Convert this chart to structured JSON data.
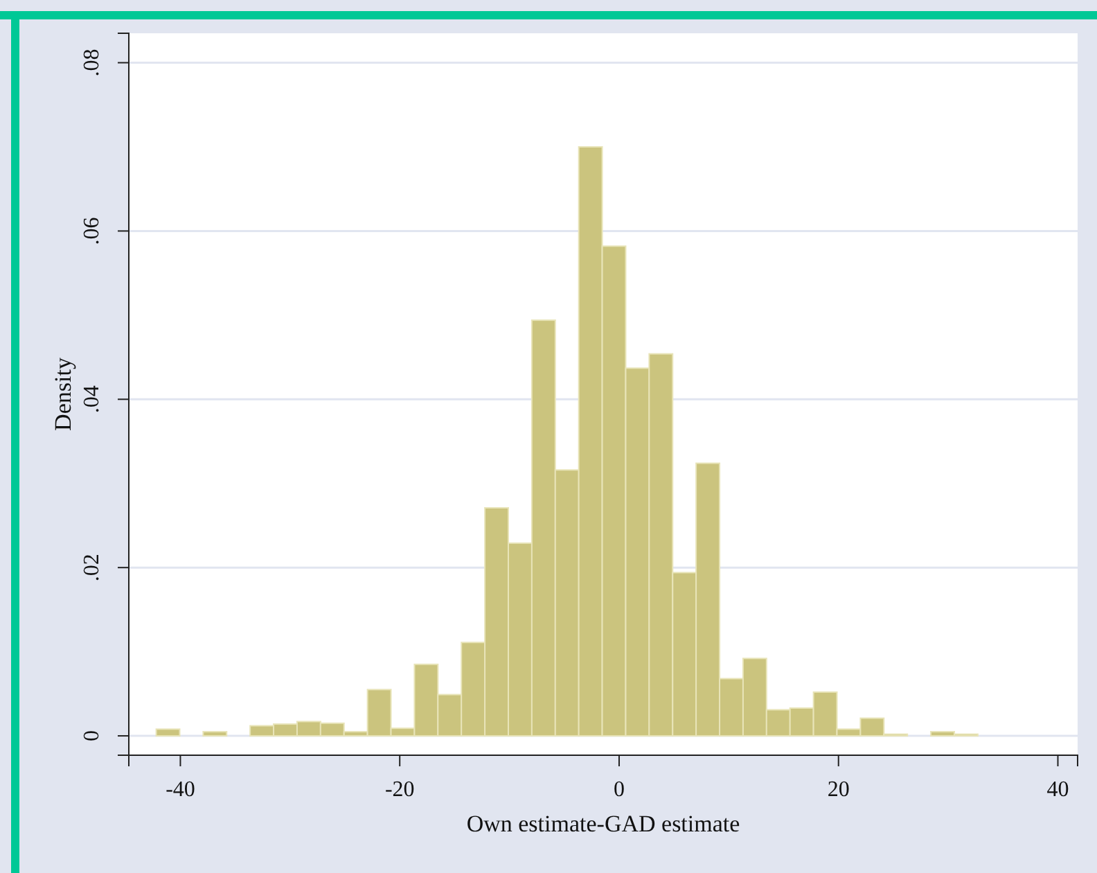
{
  "chart_data": {
    "type": "histogram",
    "xlabel": "Own estimate-GAD estimate",
    "ylabel": "Density",
    "bins": [
      -42.2,
      -40.06,
      -37.92,
      -35.78,
      -33.64,
      -31.5,
      -29.36,
      -27.22,
      -25.08,
      -22.94,
      -20.8,
      -18.66,
      -16.52,
      -14.38,
      -12.24,
      -10.1,
      -7.96,
      -5.82,
      -3.68,
      -1.54,
      0.6,
      2.74,
      4.88,
      7.02,
      9.16,
      11.3,
      13.44,
      15.58,
      17.72,
      19.86,
      22.0,
      24.14,
      26.28,
      28.42,
      30.56,
      32.7
    ],
    "values": [
      0.0008,
      0,
      0.0005,
      0,
      0.0012,
      0.0014,
      0.0017,
      0.0015,
      0.0005,
      0.0055,
      0.0009,
      0.0085,
      0.0049,
      0.0111,
      0.0271,
      0.0229,
      0.0494,
      0.0316,
      0.07,
      0.0582,
      0.0437,
      0.0454,
      0.0194,
      0.0324,
      0.0068,
      0.0092,
      0.0031,
      0.0033,
      0.0052,
      0.0008,
      0.0021,
      0.0002,
      0,
      0.0005,
      0.0002
    ],
    "color": "#cbc47e",
    "xlim": [
      -44.7,
      41.8
    ],
    "xticks": [
      -40,
      -20,
      0,
      20,
      40
    ],
    "ylim": [
      -0.0023,
      0.0835
    ],
    "yticks": [
      0,
      {
        "value": 0.02,
        "label": ".02"
      },
      {
        "value": 0.04,
        "label": ".04"
      },
      {
        "value": 0.06,
        "label": ".06"
      },
      {
        "value": 0.08,
        "label": ".08"
      }
    ],
    "grid": "y"
  }
}
